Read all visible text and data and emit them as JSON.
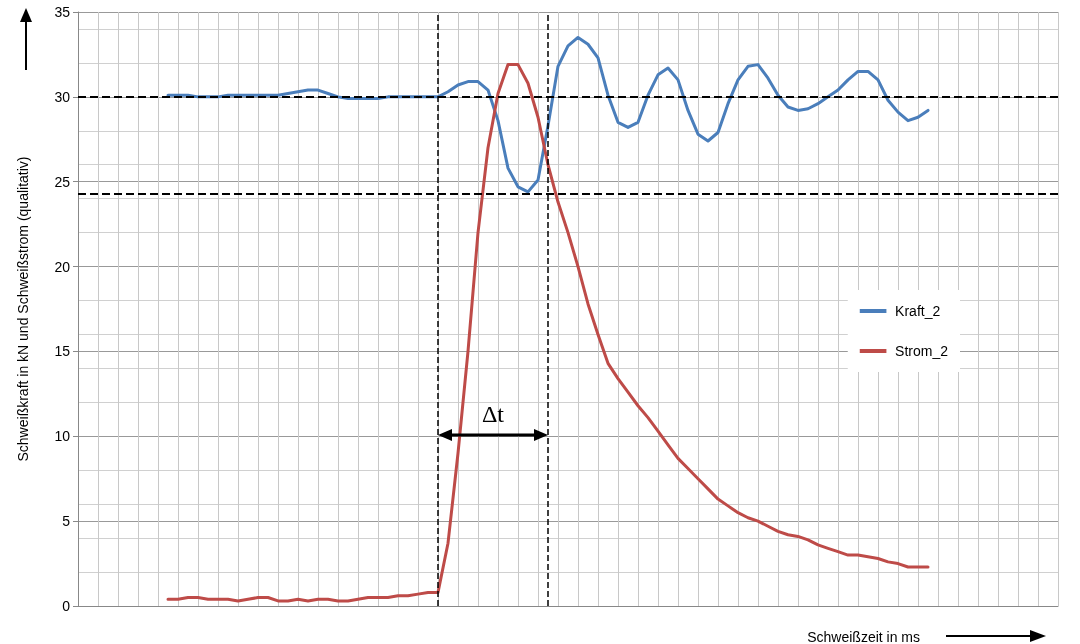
{
  "chart_data": {
    "type": "line",
    "xlabel": "Schweißzeit in ms",
    "ylabel": "Schweißkraft in kN und Schweißstrom (qualitativ)",
    "categories": [
      null,
      null,
      null,
      null,
      null,
      null,
      null,
      null,
      null,
      null,
      null,
      null,
      null,
      null,
      null,
      null,
      null,
      null,
      null,
      null,
      null,
      null,
      null,
      null,
      null,
      null,
      null,
      null,
      null,
      null,
      null,
      null,
      null,
      null,
      null,
      null,
      null,
      null,
      null,
      null,
      null,
      null,
      null,
      null,
      null,
      null,
      null,
      null,
      null,
      null,
      null,
      null,
      null,
      null,
      null,
      null,
      null,
      null,
      null,
      null,
      null,
      null,
      null,
      null,
      null,
      null,
      null,
      null,
      null,
      null,
      null,
      null,
      null,
      null,
      null,
      null,
      null,
      null,
      null,
      null,
      null,
      null,
      null,
      null,
      null,
      null,
      null,
      null,
      null,
      null,
      null,
      null,
      null,
      null,
      null,
      null,
      null,
      null,
      null
    ],
    "series": [
      {
        "name": "Kraft_2",
        "color": "#4a7ebb",
        "values": [
          null,
          null,
          null,
          null,
          null,
          null,
          null,
          null,
          null,
          30.1,
          30.1,
          30.1,
          30.0,
          30.0,
          30.0,
          30.1,
          30.1,
          30.1,
          30.1,
          30.1,
          30.1,
          30.2,
          30.3,
          30.4,
          30.4,
          30.2,
          30.0,
          29.9,
          29.9,
          29.9,
          29.9,
          30.0,
          30.0,
          30.0,
          30.0,
          30.0,
          30.0,
          30.3,
          30.7,
          30.9,
          30.9,
          30.4,
          28.6,
          25.8,
          24.7,
          24.4,
          25.1,
          28.3,
          31.8,
          33.0,
          33.5,
          33.1,
          32.3,
          30.1,
          28.5,
          28.2,
          28.5,
          30.1,
          31.3,
          31.7,
          31.0,
          29.2,
          27.8,
          27.4,
          27.9,
          29.6,
          31.0,
          31.8,
          31.9,
          31.1,
          30.1,
          29.4,
          29.2,
          29.3,
          29.6,
          30.0,
          30.4,
          31.0,
          31.5,
          31.5,
          31.0,
          29.8,
          29.1,
          28.6,
          28.8,
          29.2,
          null,
          null,
          null,
          null,
          null,
          null,
          null,
          null,
          null,
          null,
          null,
          null,
          null
        ]
      },
      {
        "name": "Strom_2",
        "color": "#be4b48",
        "values": [
          null,
          null,
          null,
          null,
          null,
          null,
          null,
          null,
          null,
          0.4,
          0.4,
          0.5,
          0.5,
          0.4,
          0.4,
          0.4,
          0.3,
          0.4,
          0.5,
          0.5,
          0.3,
          0.3,
          0.4,
          0.3,
          0.4,
          0.4,
          0.3,
          0.3,
          0.4,
          0.5,
          0.5,
          0.5,
          0.6,
          0.6,
          0.7,
          0.8,
          0.8,
          3.7,
          9.0,
          15.0,
          22.0,
          27.0,
          30.2,
          31.9,
          31.9,
          30.8,
          28.8,
          26.0,
          23.8,
          22.0,
          20.0,
          17.8,
          16.0,
          14.3,
          13.4,
          12.6,
          11.8,
          11.1,
          10.3,
          9.5,
          8.7,
          8.1,
          7.5,
          6.9,
          6.3,
          5.9,
          5.5,
          5.2,
          5.0,
          4.7,
          4.4,
          4.2,
          4.1,
          3.9,
          3.6,
          3.4,
          3.2,
          3.0,
          3.0,
          2.9,
          2.8,
          2.6,
          2.5,
          2.3,
          2.3,
          2.3,
          null,
          null,
          null,
          null,
          null,
          null,
          null,
          null,
          null,
          null,
          null,
          null,
          null
        ]
      }
    ],
    "ylim": [
      0,
      35
    ],
    "yticks": [
      0,
      5,
      10,
      15,
      20,
      25,
      30,
      35
    ],
    "tick_labels": "y",
    "ref_lines": [
      {
        "axis": "y",
        "value": 30,
        "color": "#000000",
        "line_style": "dashed"
      },
      {
        "axis": "y",
        "value": 24.3,
        "color": "#000000",
        "line_style": "dashed"
      }
    ],
    "annotations": [
      "Δt"
    ],
    "grid": true,
    "legend": "right",
    "marker": "none",
    "line_style": "solid"
  }
}
